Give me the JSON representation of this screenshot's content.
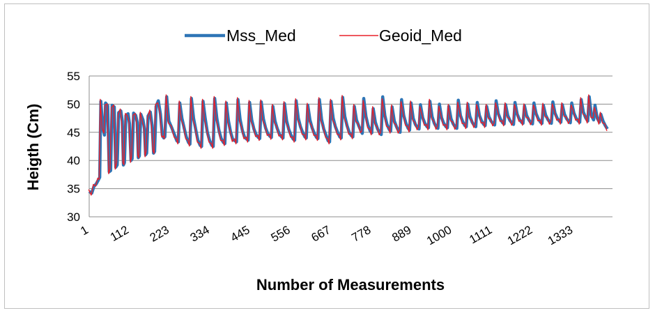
{
  "chart_data": {
    "type": "line",
    "title": "",
    "xlabel": "Number of Measurements",
    "ylabel": "Heigth (Cm)",
    "ylim": [
      30,
      55
    ],
    "yticks": [
      "30",
      "35",
      "40",
      "45",
      "50",
      "55"
    ],
    "xlim": [
      1,
      1440
    ],
    "xtick_labels": [
      "1",
      "112",
      "223",
      "334",
      "445",
      "556",
      "667",
      "778",
      "889",
      "1000",
      "1111",
      "1222",
      "1333"
    ],
    "grid": "horizontal",
    "legend_position": "top",
    "series": [
      {
        "name": "Mss_Med",
        "color": "#2e75b6",
        "linewidth": "thick"
      },
      {
        "name": "Geoid_Med",
        "color": "#e8202a",
        "linewidth": "thin"
      }
    ],
    "profile": [
      [
        1,
        34.5
      ],
      [
        8,
        34.2
      ],
      [
        14,
        35.4
      ],
      [
        20,
        35.8
      ],
      [
        26,
        36.5
      ],
      [
        30,
        37.0
      ],
      [
        33,
        50.5
      ],
      [
        38,
        46.0
      ],
      [
        43,
        44.5
      ],
      [
        46,
        50.2
      ],
      [
        52,
        49.7
      ],
      [
        56,
        38.0
      ],
      [
        60,
        38.2
      ],
      [
        64,
        49.8
      ],
      [
        70,
        49.5
      ],
      [
        74,
        38.8
      ],
      [
        78,
        39.2
      ],
      [
        82,
        48.5
      ],
      [
        88,
        48.8
      ],
      [
        92,
        47.0
      ],
      [
        95,
        39.2
      ],
      [
        98,
        39.6
      ],
      [
        102,
        48.0
      ],
      [
        108,
        48.3
      ],
      [
        112,
        46.5
      ],
      [
        116,
        40.0
      ],
      [
        119,
        40.3
      ],
      [
        123,
        48.4
      ],
      [
        129,
        48.0
      ],
      [
        133,
        46.8
      ],
      [
        136,
        40.5
      ],
      [
        139,
        40.8
      ],
      [
        143,
        48.2
      ],
      [
        149,
        47.2
      ],
      [
        153,
        45.6
      ],
      [
        156,
        41.0
      ],
      [
        159,
        41.3
      ],
      [
        163,
        47.9
      ],
      [
        169,
        48.6
      ],
      [
        174,
        46.2
      ],
      [
        178,
        41.3
      ],
      [
        181,
        41.6
      ],
      [
        185,
        49.6
      ],
      [
        191,
        50.6
      ],
      [
        197,
        48.2
      ],
      [
        202,
        44.5
      ],
      [
        206,
        44.0
      ],
      [
        209,
        44.2
      ],
      [
        214,
        51.3
      ],
      [
        220,
        47.0
      ],
      [
        228,
        45.8
      ],
      [
        236,
        44.5
      ],
      [
        242,
        43.5
      ],
      [
        246,
        43.3
      ],
      [
        250,
        50.2
      ],
      [
        256,
        47.5
      ],
      [
        262,
        45.8
      ],
      [
        268,
        44.2
      ],
      [
        274,
        43.2
      ],
      [
        278,
        42.9
      ],
      [
        282,
        51.0
      ],
      [
        288,
        47.5
      ],
      [
        294,
        45.5
      ],
      [
        300,
        43.6
      ],
      [
        306,
        42.7
      ],
      [
        310,
        42.5
      ],
      [
        314,
        50.5
      ],
      [
        320,
        47.5
      ],
      [
        326,
        45.0
      ],
      [
        332,
        43.6
      ],
      [
        338,
        42.7
      ],
      [
        342,
        42.5
      ],
      [
        346,
        51.0
      ],
      [
        352,
        47.5
      ],
      [
        358,
        45.3
      ],
      [
        364,
        43.9
      ],
      [
        370,
        43.2
      ],
      [
        374,
        43.0
      ],
      [
        378,
        50.2
      ],
      [
        384,
        47.0
      ],
      [
        390,
        45.0
      ],
      [
        396,
        43.7
      ],
      [
        402,
        43.5
      ],
      [
        406,
        43.3
      ],
      [
        410,
        50.8
      ],
      [
        416,
        47.3
      ],
      [
        422,
        45.4
      ],
      [
        428,
        44.2
      ],
      [
        434,
        43.8
      ],
      [
        438,
        43.6
      ],
      [
        442,
        50.3
      ],
      [
        448,
        47.2
      ],
      [
        454,
        45.6
      ],
      [
        460,
        44.6
      ],
      [
        466,
        44.1
      ],
      [
        470,
        43.9
      ],
      [
        474,
        50.4
      ],
      [
        480,
        47.4
      ],
      [
        486,
        45.8
      ],
      [
        492,
        44.8
      ],
      [
        498,
        44.3
      ],
      [
        502,
        44.1
      ],
      [
        506,
        49.6
      ],
      [
        512,
        47.0
      ],
      [
        518,
        45.7
      ],
      [
        524,
        44.7
      ],
      [
        530,
        44.2
      ],
      [
        534,
        44.0
      ],
      [
        538,
        50.1
      ],
      [
        544,
        47.0
      ],
      [
        550,
        45.5
      ],
      [
        556,
        44.5
      ],
      [
        562,
        43.8
      ],
      [
        566,
        43.6
      ],
      [
        570,
        50.6
      ],
      [
        576,
        47.5
      ],
      [
        582,
        46.0
      ],
      [
        588,
        45.0
      ],
      [
        594,
        44.2
      ],
      [
        598,
        44.0
      ],
      [
        602,
        49.8
      ],
      [
        608,
        47.2
      ],
      [
        614,
        45.8
      ],
      [
        620,
        44.8
      ],
      [
        626,
        44.1
      ],
      [
        630,
        43.9
      ],
      [
        634,
        50.8
      ],
      [
        640,
        47.3
      ],
      [
        646,
        45.6
      ],
      [
        652,
        44.5
      ],
      [
        658,
        43.5
      ],
      [
        662,
        43.3
      ],
      [
        666,
        50.5
      ],
      [
        672,
        47.5
      ],
      [
        678,
        46.0
      ],
      [
        684,
        45.0
      ],
      [
        690,
        44.2
      ],
      [
        694,
        44.0
      ],
      [
        698,
        51.2
      ],
      [
        704,
        47.8
      ],
      [
        710,
        46.2
      ],
      [
        716,
        45.0
      ],
      [
        722,
        44.4
      ],
      [
        726,
        44.2
      ],
      [
        730,
        49.6
      ],
      [
        736,
        47.2
      ],
      [
        742,
        46.2
      ],
      [
        748,
        45.3
      ],
      [
        752,
        44.8
      ],
      [
        756,
        51.0
      ],
      [
        762,
        47.8
      ],
      [
        768,
        46.2
      ],
      [
        774,
        45.2
      ],
      [
        778,
        44.9
      ],
      [
        782,
        49.2
      ],
      [
        788,
        46.8
      ],
      [
        794,
        45.6
      ],
      [
        800,
        44.9
      ],
      [
        804,
        44.6
      ],
      [
        808,
        51.3
      ],
      [
        814,
        48.0
      ],
      [
        820,
        46.4
      ],
      [
        826,
        45.5
      ],
      [
        830,
        45.2
      ],
      [
        834,
        49.5
      ],
      [
        840,
        47.0
      ],
      [
        846,
        46.0
      ],
      [
        852,
        45.2
      ],
      [
        856,
        45.0
      ],
      [
        860,
        50.8
      ],
      [
        866,
        48.0
      ],
      [
        872,
        46.6
      ],
      [
        878,
        45.7
      ],
      [
        882,
        45.4
      ],
      [
        886,
        50.2
      ],
      [
        892,
        47.5
      ],
      [
        898,
        46.4
      ],
      [
        904,
        45.8
      ],
      [
        908,
        45.6
      ],
      [
        912,
        49.9
      ],
      [
        918,
        47.6
      ],
      [
        924,
        46.6
      ],
      [
        930,
        46.0
      ],
      [
        934,
        45.8
      ],
      [
        938,
        50.5
      ],
      [
        944,
        47.8
      ],
      [
        950,
        46.6
      ],
      [
        956,
        45.9
      ],
      [
        960,
        45.7
      ],
      [
        964,
        50.0
      ],
      [
        970,
        47.6
      ],
      [
        976,
        46.6
      ],
      [
        982,
        46.0
      ],
      [
        986,
        45.8
      ],
      [
        990,
        49.6
      ],
      [
        996,
        47.4
      ],
      [
        1002,
        46.5
      ],
      [
        1008,
        45.9
      ],
      [
        1012,
        45.7
      ],
      [
        1016,
        50.7
      ],
      [
        1022,
        48.0
      ],
      [
        1028,
        46.9
      ],
      [
        1034,
        46.2
      ],
      [
        1038,
        46.0
      ],
      [
        1042,
        50.0
      ],
      [
        1048,
        47.8
      ],
      [
        1054,
        46.8
      ],
      [
        1060,
        46.2
      ],
      [
        1064,
        46.0
      ],
      [
        1068,
        50.3
      ],
      [
        1074,
        48.0
      ],
      [
        1080,
        47.0
      ],
      [
        1086,
        46.4
      ],
      [
        1090,
        46.2
      ],
      [
        1094,
        49.6
      ],
      [
        1100,
        47.8
      ],
      [
        1106,
        47.0
      ],
      [
        1112,
        46.5
      ],
      [
        1116,
        46.3
      ],
      [
        1120,
        50.6
      ],
      [
        1126,
        48.3
      ],
      [
        1132,
        47.3
      ],
      [
        1138,
        46.7
      ],
      [
        1142,
        46.5
      ],
      [
        1146,
        49.9
      ],
      [
        1152,
        48.0
      ],
      [
        1158,
        47.1
      ],
      [
        1164,
        46.6
      ],
      [
        1168,
        46.4
      ],
      [
        1172,
        50.3
      ],
      [
        1178,
        48.2
      ],
      [
        1184,
        47.3
      ],
      [
        1190,
        46.8
      ],
      [
        1194,
        46.6
      ],
      [
        1198,
        49.7
      ],
      [
        1204,
        48.0
      ],
      [
        1210,
        47.2
      ],
      [
        1216,
        46.7
      ],
      [
        1220,
        46.5
      ],
      [
        1224,
        50.2
      ],
      [
        1230,
        48.3
      ],
      [
        1236,
        47.4
      ],
      [
        1242,
        46.8
      ],
      [
        1246,
        46.6
      ],
      [
        1250,
        49.8
      ],
      [
        1256,
        48.1
      ],
      [
        1262,
        47.3
      ],
      [
        1268,
        46.8
      ],
      [
        1272,
        46.6
      ],
      [
        1276,
        50.4
      ],
      [
        1282,
        48.4
      ],
      [
        1288,
        47.5
      ],
      [
        1294,
        47.0
      ],
      [
        1298,
        46.8
      ],
      [
        1302,
        49.9
      ],
      [
        1308,
        48.2
      ],
      [
        1314,
        47.4
      ],
      [
        1320,
        46.9
      ],
      [
        1324,
        46.7
      ],
      [
        1328,
        50.2
      ],
      [
        1334,
        48.4
      ],
      [
        1340,
        47.5
      ],
      [
        1346,
        47.0
      ],
      [
        1350,
        46.8
      ],
      [
        1354,
        50.8
      ],
      [
        1360,
        48.6
      ],
      [
        1366,
        47.6
      ],
      [
        1372,
        47.0
      ],
      [
        1376,
        51.3
      ],
      [
        1382,
        48.0
      ],
      [
        1388,
        47.2
      ],
      [
        1392,
        49.8
      ],
      [
        1398,
        47.5
      ],
      [
        1404,
        46.8
      ],
      [
        1408,
        48.2
      ],
      [
        1414,
        47.0
      ],
      [
        1420,
        46.2
      ],
      [
        1426,
        45.6
      ]
    ]
  }
}
